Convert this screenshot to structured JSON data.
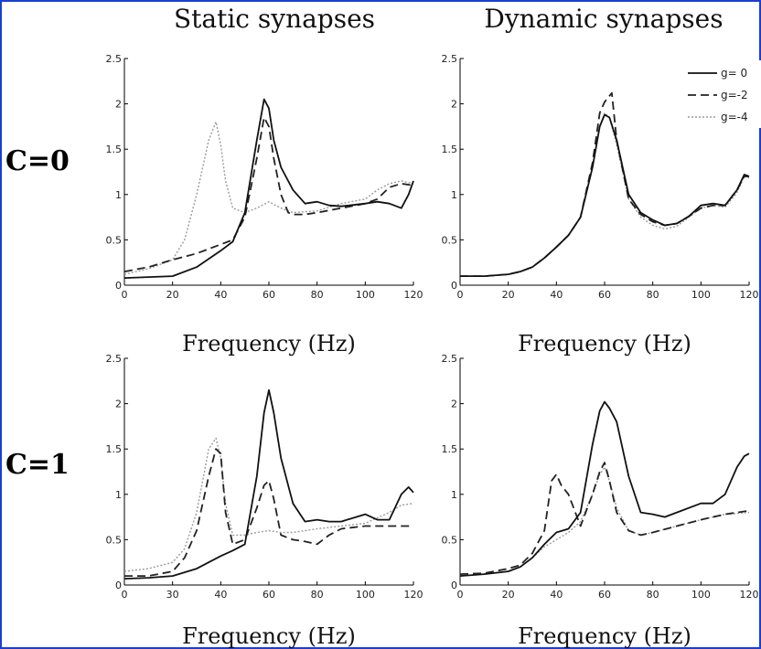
{
  "column_titles": [
    "Static synapses",
    "Dynamic synapses"
  ],
  "row_labels": [
    "C=0",
    "C=1"
  ],
  "legend": [
    "g= 0",
    "g=-2",
    "g=-4"
  ],
  "colors": {
    "frame": "#1a3fd0",
    "g0": "#111111",
    "g2": "#222222",
    "g4": "#9a9a9a"
  },
  "chart_data": [
    {
      "type": "line",
      "panel": "static-c0",
      "xlabel": "Frequency (Hz)",
      "ylabel": "",
      "xlim": [
        0,
        120
      ],
      "ylim": [
        0,
        2.5
      ],
      "xticks": [
        0,
        20,
        40,
        60,
        80,
        100,
        120
      ],
      "yticks": [
        0,
        0.5,
        1,
        1.5,
        2,
        2.5
      ],
      "series": [
        {
          "name": "g= 0",
          "x": [
            0,
            10,
            20,
            30,
            40,
            45,
            50,
            55,
            58,
            60,
            62,
            65,
            70,
            75,
            80,
            85,
            90,
            100,
            105,
            110,
            115,
            118,
            120
          ],
          "y": [
            0.08,
            0.09,
            0.1,
            0.2,
            0.38,
            0.48,
            0.8,
            1.6,
            2.05,
            1.95,
            1.6,
            1.3,
            1.05,
            0.9,
            0.92,
            0.88,
            0.87,
            0.9,
            0.92,
            0.9,
            0.85,
            1.0,
            1.15
          ]
        },
        {
          "name": "g=-2",
          "x": [
            0,
            10,
            20,
            30,
            40,
            45,
            50,
            55,
            58,
            60,
            62,
            65,
            68,
            70,
            75,
            80,
            90,
            100,
            105,
            110,
            115,
            120
          ],
          "y": [
            0.15,
            0.2,
            0.28,
            0.35,
            0.45,
            0.5,
            0.75,
            1.4,
            1.85,
            1.75,
            1.4,
            1.0,
            0.8,
            0.78,
            0.78,
            0.8,
            0.85,
            0.9,
            0.95,
            1.08,
            1.12,
            1.1
          ]
        },
        {
          "name": "g=-4",
          "x": [
            0,
            10,
            20,
            25,
            30,
            35,
            38,
            40,
            42,
            45,
            50,
            55,
            60,
            65,
            70,
            80,
            90,
            100,
            105,
            110,
            115,
            120
          ],
          "y": [
            0.12,
            0.18,
            0.28,
            0.5,
            1.0,
            1.6,
            1.8,
            1.55,
            1.15,
            0.85,
            0.8,
            0.85,
            0.92,
            0.85,
            0.8,
            0.82,
            0.9,
            0.95,
            1.05,
            1.12,
            1.15,
            1.12
          ]
        }
      ]
    },
    {
      "type": "line",
      "panel": "dynamic-c0",
      "xlabel": "Frequency (Hz)",
      "ylabel": "",
      "xlim": [
        0,
        120
      ],
      "ylim": [
        0,
        2.5
      ],
      "xticks": [
        0,
        20,
        40,
        60,
        80,
        100,
        120
      ],
      "yticks": [
        0,
        0.5,
        1,
        1.5,
        2,
        2.5
      ],
      "series": [
        {
          "name": "g= 0",
          "x": [
            0,
            10,
            20,
            25,
            30,
            35,
            40,
            45,
            50,
            55,
            58,
            60,
            62,
            65,
            70,
            75,
            80,
            85,
            90,
            95,
            100,
            105,
            110,
            115,
            118,
            120
          ],
          "y": [
            0.1,
            0.1,
            0.12,
            0.15,
            0.2,
            0.3,
            0.42,
            0.55,
            0.75,
            1.3,
            1.75,
            1.88,
            1.85,
            1.6,
            1.0,
            0.8,
            0.72,
            0.66,
            0.68,
            0.76,
            0.88,
            0.9,
            0.88,
            1.05,
            1.22,
            1.2
          ]
        },
        {
          "name": "g=-2",
          "x": [
            0,
            10,
            20,
            25,
            30,
            35,
            40,
            45,
            50,
            55,
            58,
            60,
            63,
            65,
            70,
            75,
            80,
            85,
            90,
            95,
            100,
            105,
            110,
            115,
            118,
            120
          ],
          "y": [
            0.1,
            0.1,
            0.12,
            0.15,
            0.2,
            0.3,
            0.42,
            0.55,
            0.75,
            1.35,
            1.9,
            2.02,
            2.12,
            1.6,
            0.95,
            0.78,
            0.7,
            0.66,
            0.68,
            0.76,
            0.85,
            0.88,
            0.88,
            1.05,
            1.2,
            1.2
          ]
        },
        {
          "name": "g=-4",
          "x": [
            0,
            10,
            20,
            25,
            30,
            35,
            40,
            45,
            50,
            55,
            58,
            60,
            62,
            65,
            70,
            75,
            80,
            85,
            90,
            95,
            100,
            105,
            110,
            115,
            118,
            120
          ],
          "y": [
            0.1,
            0.1,
            0.12,
            0.15,
            0.2,
            0.3,
            0.42,
            0.55,
            0.75,
            1.3,
            1.75,
            1.9,
            1.85,
            1.55,
            0.95,
            0.75,
            0.66,
            0.62,
            0.65,
            0.75,
            0.85,
            0.88,
            0.86,
            1.02,
            1.2,
            1.18
          ]
        }
      ]
    },
    {
      "type": "line",
      "panel": "static-c1",
      "xlabel": "Frequency (Hz)",
      "ylabel": "",
      "xlim": [
        0,
        120
      ],
      "ylim": [
        0,
        2.5
      ],
      "xticks": [
        0,
        30,
        40,
        60,
        80,
        100,
        120
      ],
      "yticks": [
        0,
        0.5,
        1,
        1.5,
        2,
        2.5
      ],
      "series": [
        {
          "name": "g= 0",
          "x": [
            0,
            10,
            20,
            30,
            40,
            45,
            50,
            55,
            58,
            60,
            62,
            65,
            70,
            75,
            80,
            85,
            90,
            100,
            105,
            110,
            115,
            118,
            120
          ],
          "y": [
            0.07,
            0.08,
            0.1,
            0.18,
            0.32,
            0.38,
            0.45,
            1.2,
            1.9,
            2.15,
            1.9,
            1.4,
            0.9,
            0.7,
            0.72,
            0.7,
            0.7,
            0.78,
            0.72,
            0.72,
            1.0,
            1.08,
            1.02
          ]
        },
        {
          "name": "g=-2",
          "x": [
            0,
            10,
            20,
            25,
            30,
            35,
            38,
            40,
            42,
            45,
            50,
            55,
            58,
            60,
            62,
            65,
            70,
            75,
            80,
            85,
            90,
            100,
            110,
            120
          ],
          "y": [
            0.1,
            0.1,
            0.15,
            0.3,
            0.6,
            1.2,
            1.5,
            1.45,
            0.8,
            0.45,
            0.5,
            0.85,
            1.1,
            1.15,
            0.95,
            0.55,
            0.5,
            0.48,
            0.45,
            0.55,
            0.62,
            0.65,
            0.65,
            0.65
          ]
        },
        {
          "name": "g=-4",
          "x": [
            0,
            10,
            20,
            25,
            30,
            35,
            38,
            40,
            42,
            45,
            50,
            55,
            60,
            65,
            70,
            80,
            90,
            100,
            110,
            115,
            120
          ],
          "y": [
            0.15,
            0.18,
            0.25,
            0.4,
            0.8,
            1.5,
            1.62,
            1.4,
            0.9,
            0.55,
            0.55,
            0.58,
            0.6,
            0.58,
            0.58,
            0.62,
            0.65,
            0.68,
            0.8,
            0.88,
            0.9
          ]
        }
      ]
    },
    {
      "type": "line",
      "panel": "dynamic-c1",
      "xlabel": "Frequency (Hz)",
      "ylabel": "",
      "xlim": [
        0,
        120
      ],
      "ylim": [
        0,
        2.5
      ],
      "xticks": [
        0,
        20,
        40,
        60,
        80,
        100,
        120
      ],
      "yticks": [
        0,
        0.5,
        1,
        1.5,
        2,
        2.5
      ],
      "series": [
        {
          "name": "g= 0",
          "x": [
            0,
            10,
            20,
            25,
            30,
            35,
            40,
            45,
            50,
            55,
            58,
            60,
            62,
            65,
            70,
            75,
            80,
            85,
            90,
            100,
            105,
            110,
            115,
            118,
            120
          ],
          "y": [
            0.1,
            0.12,
            0.15,
            0.2,
            0.3,
            0.45,
            0.58,
            0.62,
            0.8,
            1.55,
            1.92,
            2.02,
            1.95,
            1.8,
            1.2,
            0.8,
            0.78,
            0.75,
            0.8,
            0.9,
            0.9,
            1.0,
            1.3,
            1.42,
            1.45
          ]
        },
        {
          "name": "g=-2",
          "x": [
            0,
            10,
            20,
            25,
            30,
            35,
            38,
            40,
            42,
            45,
            50,
            55,
            58,
            60,
            62,
            65,
            70,
            75,
            80,
            90,
            100,
            110,
            120
          ],
          "y": [
            0.12,
            0.13,
            0.18,
            0.22,
            0.35,
            0.6,
            1.15,
            1.22,
            1.1,
            1.0,
            0.65,
            1.0,
            1.25,
            1.35,
            1.15,
            0.8,
            0.6,
            0.55,
            0.58,
            0.65,
            0.72,
            0.78,
            0.82
          ]
        },
        {
          "name": "g=-4",
          "x": [
            0,
            10,
            20,
            25,
            30,
            35,
            40,
            45,
            50,
            55,
            58,
            60,
            62,
            65,
            70,
            75,
            80,
            90,
            100,
            110,
            120
          ],
          "y": [
            0.1,
            0.12,
            0.15,
            0.2,
            0.3,
            0.42,
            0.5,
            0.58,
            0.7,
            1.0,
            1.22,
            1.3,
            1.15,
            0.85,
            0.6,
            0.55,
            0.58,
            0.65,
            0.72,
            0.78,
            0.8
          ]
        }
      ]
    }
  ]
}
